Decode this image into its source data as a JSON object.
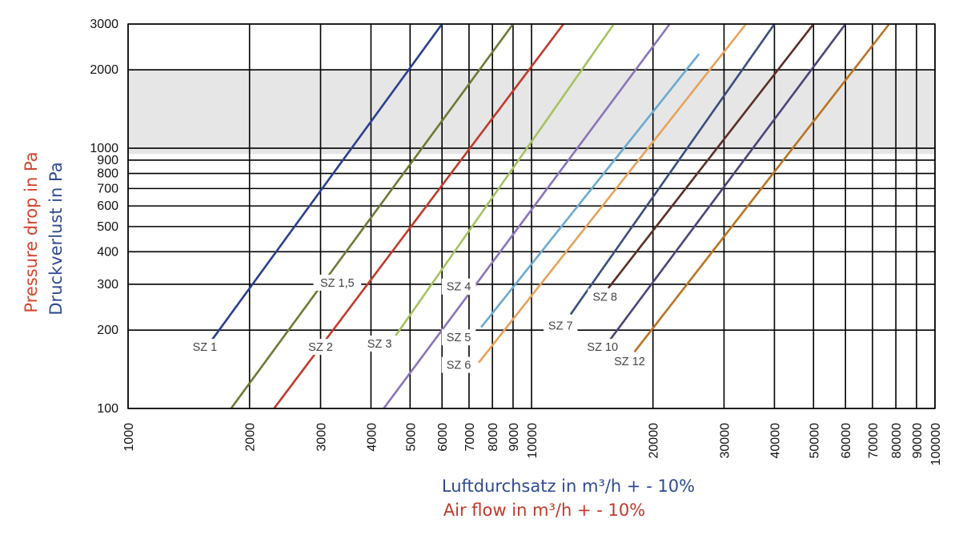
{
  "chart_data": {
    "type": "line",
    "x_scale": "log",
    "y_scale": "log",
    "xlim": [
      1000,
      100000
    ],
    "ylim": [
      100,
      3000
    ],
    "x_ticks": [
      "1000",
      "2000",
      "3000",
      "4000",
      "5000",
      "6000",
      "7000",
      "8000",
      "9000",
      "10000",
      "20000",
      "30000",
      "40000",
      "50000",
      "60000",
      "70000",
      "80000",
      "90000",
      "100000"
    ],
    "y_ticks": [
      "100",
      "200",
      "300",
      "400",
      "500",
      "600",
      "700",
      "800",
      "900",
      "1000",
      "2000",
      "3000"
    ],
    "xlabel_de": "Luftdurchsatz in m³/h  + - 10%",
    "xlabel_en": "Air flow in m³/h  + - 10%",
    "ylabel_en": "Pressure drop in Pa",
    "ylabel_de": "Druckverlust in Pa",
    "shaded_band": {
      "y_from": 950,
      "y_to": 2000,
      "color": "#e6e6e6"
    },
    "colors": {
      "xlabel_de": "#2e4a8f",
      "xlabel_en": "#c0392b",
      "ylabel_en": "#d0452d",
      "ylabel_de": "#2e4a8f",
      "grid": "#000000"
    },
    "series": [
      {
        "name": "SZ 1",
        "color": "#2b3f8f",
        "x": [
          1600,
          6000
        ],
        "y": [
          180,
          3000
        ],
        "label_x": 1550,
        "label_y": 170
      },
      {
        "name": "SZ 1,5",
        "color": "#6b7a33",
        "x": [
          1800,
          9000
        ],
        "y": [
          100,
          3000
        ],
        "label_x": 3300,
        "label_y": 300
      },
      {
        "name": "SZ 2",
        "color": "#c0392b",
        "x": [
          2300,
          12000
        ],
        "y": [
          100,
          3000
        ],
        "label_x": 3000,
        "label_y": 170
      },
      {
        "name": "SZ 3",
        "color": "#a6c25e",
        "x": [
          4600,
          16000
        ],
        "y": [
          190,
          3000
        ],
        "label_x": 4200,
        "label_y": 175
      },
      {
        "name": "SZ 4",
        "color": "#8a74b8",
        "x": [
          4300,
          22000
        ],
        "y": [
          100,
          3000
        ],
        "label_x": 6600,
        "label_y": 290
      },
      {
        "name": "SZ 5",
        "color": "#6aaad0",
        "x": [
          7500,
          26000
        ],
        "y": [
          205,
          2300
        ],
        "label_x": 6600,
        "label_y": 185
      },
      {
        "name": "SZ 6",
        "color": "#e6a25a",
        "x": [
          7400,
          34000
        ],
        "y": [
          150,
          3000
        ],
        "label_x": 6600,
        "label_y": 145
      },
      {
        "name": "SZ 7",
        "color": "#3b4d7d",
        "x": [
          12500,
          40000
        ],
        "y": [
          230,
          3000
        ],
        "label_x": 11800,
        "label_y": 205
      },
      {
        "name": "SZ 8",
        "color": "#5a2e28",
        "x": [
          15500,
          50000
        ],
        "y": [
          290,
          3000
        ],
        "label_x": 15200,
        "label_y": 265
      },
      {
        "name": "SZ 10",
        "color": "#4b4478",
        "x": [
          15500,
          60000
        ],
        "y": [
          180,
          3000
        ],
        "label_x": 15000,
        "label_y": 170
      },
      {
        "name": "SZ 12",
        "color": "#b87424",
        "x": [
          18000,
          77000
        ],
        "y": [
          165,
          3000
        ],
        "label_x": 17500,
        "label_y": 150
      }
    ]
  }
}
